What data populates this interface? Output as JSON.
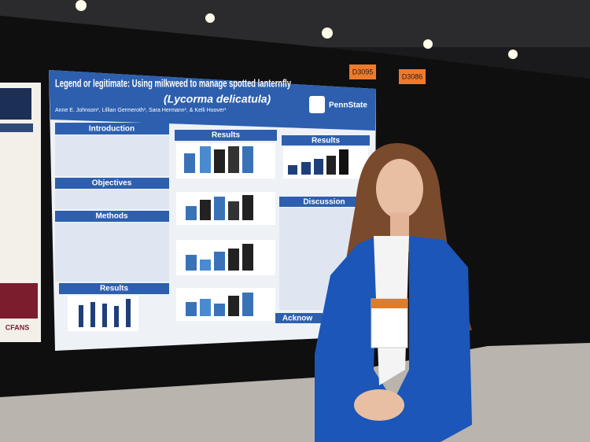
{
  "poster": {
    "title": "Legend or legitimate: Using milkweed to manage spotted lanternfly",
    "species": "(Lycorma delicatula)",
    "authors": "Anne E. Johnson¹, Lillian Germeroth¹, Sara Hermann¹, & Kelli Hoover¹",
    "logo": "PennState",
    "sections": [
      "Introduction",
      "Objectives",
      "Methods",
      "Results",
      "Results",
      "Results",
      "Discussion"
    ],
    "acknowledgements": "Acknow"
  },
  "booth_tags": [
    "D3095",
    "D3086"
  ],
  "side_poster": {
    "logo": "CFANS"
  }
}
